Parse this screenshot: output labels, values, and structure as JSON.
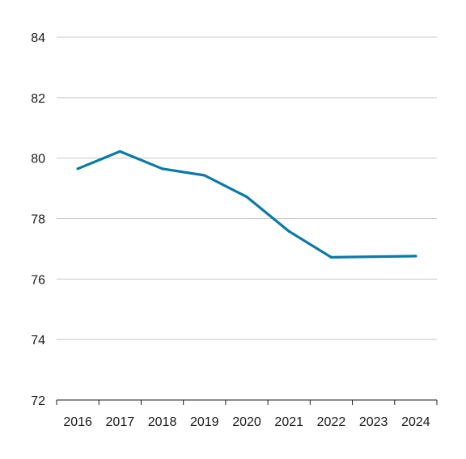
{
  "chart_data": {
    "type": "line",
    "title": "",
    "xlabel": "",
    "ylabel": "",
    "categories": [
      "2016",
      "2017",
      "2018",
      "2019",
      "2020",
      "2021",
      "2022",
      "2023",
      "2024"
    ],
    "series": [
      {
        "values": [
          79.65,
          80.22,
          79.65,
          79.43,
          78.72,
          77.58,
          76.72,
          76.74,
          76.76
        ],
        "color": "#0a7aa6"
      }
    ],
    "ylim": [
      72,
      84
    ],
    "yticks": [
      72,
      74,
      76,
      78,
      80,
      82,
      84
    ],
    "grid": true,
    "legend": "none"
  }
}
